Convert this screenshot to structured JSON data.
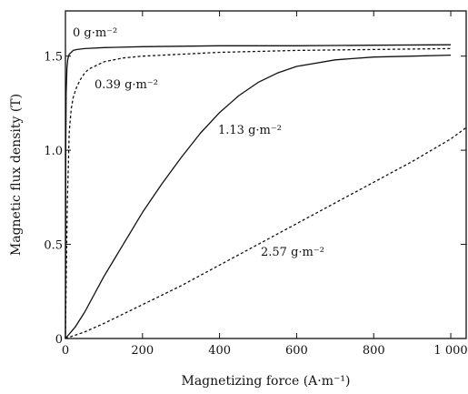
{
  "chart_data": {
    "type": "line",
    "xlabel": "Magnetizing force (A·m⁻¹)",
    "ylabel": "Magnetic flux density (T)",
    "xlim": [
      0,
      1040
    ],
    "ylim": [
      0,
      1.74
    ],
    "xticks": [
      0,
      200,
      400,
      600,
      800,
      1000
    ],
    "xtick_labels": [
      "0",
      "200",
      "400",
      "600",
      "800",
      "1 000"
    ],
    "yticks": [
      0,
      0.5,
      1.0,
      1.5
    ],
    "ytick_labels": [
      "0",
      "0.5",
      "1.0",
      "1.5"
    ],
    "grid": false,
    "series": [
      {
        "name": "0 g·m⁻²",
        "style": "solid",
        "x": [
          0,
          1,
          2,
          4,
          6,
          8,
          10,
          15,
          20,
          30,
          50,
          100,
          200,
          400,
          600,
          800,
          1000
        ],
        "y": [
          0,
          1.0,
          1.3,
          1.44,
          1.48,
          1.5,
          1.51,
          1.52,
          1.53,
          1.535,
          1.54,
          1.545,
          1.55,
          1.555,
          1.555,
          1.558,
          1.56
        ]
      },
      {
        "name": "0.39 g·m⁻²",
        "style": "dashed",
        "x": [
          0,
          2,
          5,
          10,
          15,
          20,
          30,
          40,
          50,
          60,
          80,
          100,
          150,
          200,
          300,
          400,
          500,
          600,
          800,
          1000
        ],
        "y": [
          0,
          0.3,
          0.72,
          1.1,
          1.22,
          1.28,
          1.34,
          1.38,
          1.41,
          1.43,
          1.45,
          1.47,
          1.49,
          1.5,
          1.51,
          1.52,
          1.525,
          1.53,
          1.535,
          1.54
        ]
      },
      {
        "name": "1.13 g·m⁻²",
        "style": "solid",
        "x": [
          0,
          25,
          50,
          100,
          150,
          200,
          250,
          300,
          350,
          400,
          450,
          500,
          550,
          600,
          700,
          800,
          900,
          1000
        ],
        "y": [
          0,
          0.06,
          0.14,
          0.33,
          0.5,
          0.67,
          0.82,
          0.96,
          1.09,
          1.2,
          1.29,
          1.36,
          1.41,
          1.445,
          1.48,
          1.495,
          1.5,
          1.505
        ]
      },
      {
        "name": "2.57 g·m⁻²",
        "style": "dashed",
        "x": [
          0,
          50,
          100,
          200,
          300,
          400,
          500,
          600,
          700,
          800,
          900,
          1000,
          1040
        ],
        "y": [
          0,
          0.035,
          0.08,
          0.18,
          0.28,
          0.39,
          0.5,
          0.61,
          0.72,
          0.83,
          0.94,
          1.06,
          1.12
        ]
      }
    ]
  },
  "labels": {
    "s0": "0 g·m⁻²",
    "s1": "0.39 g·m⁻²",
    "s2": "1.13 g·m⁻²",
    "s3": "2.57 g·m⁻²"
  }
}
